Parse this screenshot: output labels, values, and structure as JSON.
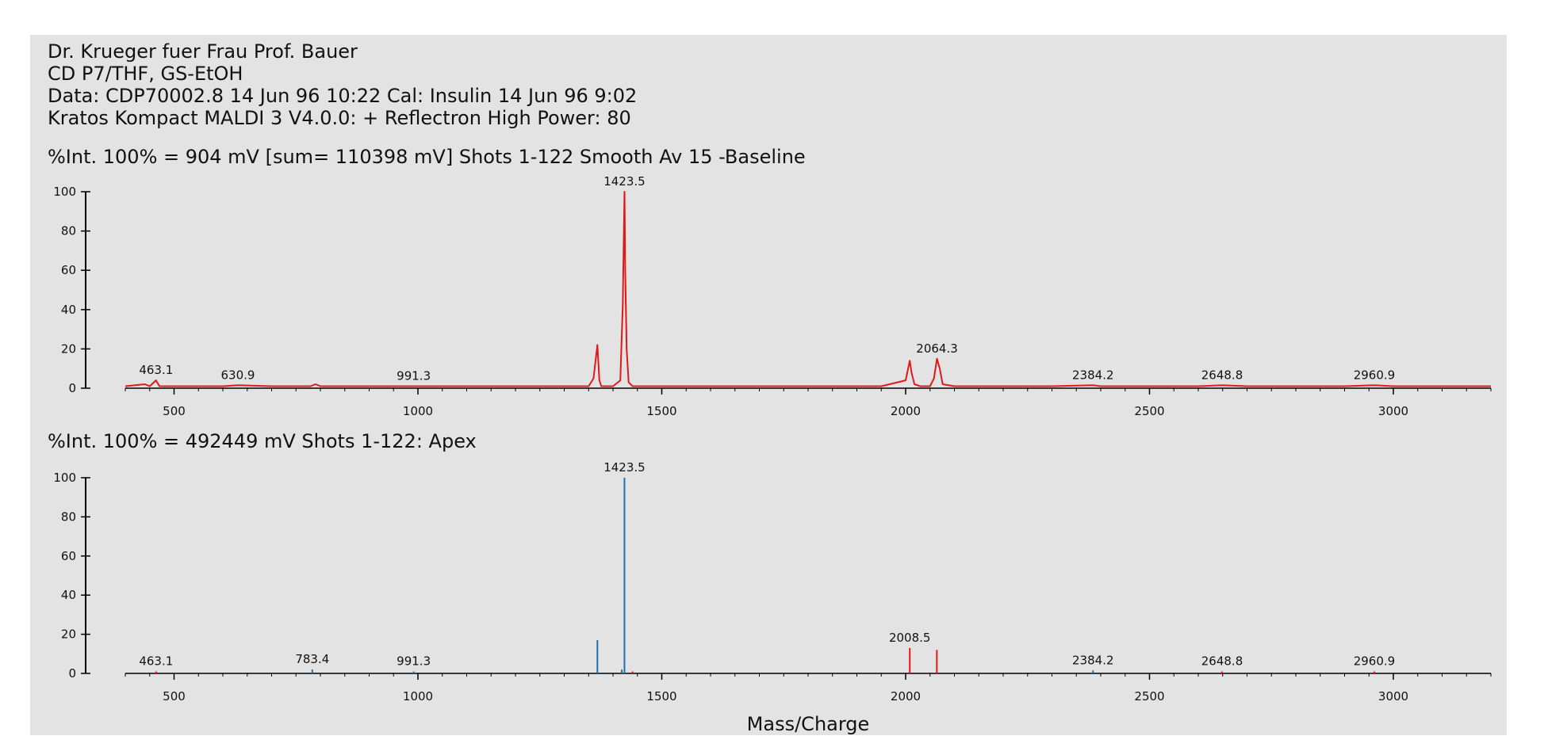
{
  "header": {
    "line1": "Dr. Krueger fuer Frau Prof. Bauer",
    "line2": "CD P7/THF, GS-EtOH",
    "line3": "Data: CDP70002.8 14 Jun 96 10:22 Cal: Insulin 14 Jun 96 9:02",
    "line4": "Kratos Kompact MALDI 3 V4.0.0: + Reflectron High Power: 80"
  },
  "colors": {
    "panel": "#e3e3e3",
    "spectrum_top": "#e01818",
    "stick_main": "#1f6fb0",
    "stick_alt": "#e01818",
    "axis": "#000000"
  },
  "chart_data": [
    {
      "type": "line",
      "stat_line": "%Int. 100% = 904 mV [sum= 110398 mV] Shots 1-122 Smooth Av 15 -Baseline",
      "xlim": [
        400,
        3200
      ],
      "ylim": [
        0,
        100
      ],
      "x_ticks": [
        500,
        1000,
        1500,
        2000,
        2500,
        3000
      ],
      "y_ticks": [
        0,
        20,
        40,
        60,
        80,
        100
      ],
      "series": [
        {
          "x": [
            400,
            440,
            450,
            463,
            470,
            500,
            600,
            630.9,
            700,
            780,
            790,
            800,
            900,
            991.3,
            1000,
            1100,
            1200,
            1300,
            1350,
            1360,
            1368,
            1372,
            1376,
            1385,
            1400,
            1415,
            1420,
            1422,
            1423.5,
            1425,
            1428,
            1432,
            1440,
            1460,
            1500,
            1600,
            1700,
            1800,
            1900,
            1950,
            2000,
            2005,
            2008.5,
            2012,
            2018,
            2030,
            2050,
            2058,
            2064.3,
            2070,
            2076,
            2100,
            2200,
            2300,
            2384.2,
            2400,
            2500,
            2600,
            2648.8,
            2700,
            2800,
            2900,
            2960.9,
            3000,
            3100,
            3200
          ],
          "y": [
            1,
            2,
            1,
            4,
            1,
            1,
            1,
            1.5,
            1,
            1,
            2,
            1,
            1,
            1,
            1,
            1,
            1,
            1,
            1,
            5,
            22,
            4,
            1,
            1,
            1,
            4,
            42,
            75,
            100,
            60,
            20,
            3,
            1,
            1,
            1,
            1,
            1,
            1,
            1,
            1,
            4,
            10,
            14,
            8,
            2,
            1,
            1,
            5,
            15,
            10,
            2,
            1,
            1,
            1,
            1.5,
            1,
            1,
            1,
            1.5,
            1,
            1,
            1,
            1.5,
            1,
            1,
            1
          ]
        }
      ],
      "peak_labels": [
        {
          "x": 463.1,
          "y": 4,
          "text": "463.1"
        },
        {
          "x": 630.9,
          "y": 1.5,
          "text": "630.9"
        },
        {
          "x": 991.3,
          "y": 1,
          "text": "991.3"
        },
        {
          "x": 1423.5,
          "y": 100,
          "text": "1423.5"
        },
        {
          "x": 2064.3,
          "y": 15,
          "text": "2064.3"
        },
        {
          "x": 2384.2,
          "y": 1.5,
          "text": "2384.2"
        },
        {
          "x": 2648.8,
          "y": 1.5,
          "text": "2648.8"
        },
        {
          "x": 2960.9,
          "y": 1.5,
          "text": "2960.9"
        }
      ],
      "xlabel": "",
      "ylabel": ""
    },
    {
      "type": "bar",
      "stat_line": "%Int. 100% = 492449 mV Shots 1-122: Apex",
      "xlim": [
        400,
        3200
      ],
      "ylim": [
        0,
        100
      ],
      "x_ticks": [
        500,
        1000,
        1500,
        2000,
        2500,
        3000
      ],
      "y_ticks": [
        0,
        20,
        40,
        60,
        80,
        100
      ],
      "sticks": [
        {
          "x": 463.1,
          "y": 1,
          "color": "#e01818"
        },
        {
          "x": 783.4,
          "y": 2,
          "color": "#1f6fb0"
        },
        {
          "x": 991.3,
          "y": 1,
          "color": "#1f6fb0"
        },
        {
          "x": 1368,
          "y": 17,
          "color": "#1f6fb0"
        },
        {
          "x": 1418,
          "y": 2,
          "color": "#1f6fb0"
        },
        {
          "x": 1423.5,
          "y": 100,
          "color": "#1f6fb0"
        },
        {
          "x": 1440,
          "y": 1,
          "color": "#e01818"
        },
        {
          "x": 2008.5,
          "y": 13,
          "color": "#e01818"
        },
        {
          "x": 2064,
          "y": 12,
          "color": "#e01818"
        },
        {
          "x": 2384.2,
          "y": 1.5,
          "color": "#1f6fb0"
        },
        {
          "x": 2648.8,
          "y": 1,
          "color": "#e01818"
        },
        {
          "x": 2960.9,
          "y": 1,
          "color": "#e01818"
        }
      ],
      "peak_labels": [
        {
          "x": 463.1,
          "y": 1,
          "text": "463.1"
        },
        {
          "x": 783.4,
          "y": 2,
          "text": "783.4"
        },
        {
          "x": 991.3,
          "y": 1,
          "text": "991.3"
        },
        {
          "x": 1423.5,
          "y": 100,
          "text": "1423.5"
        },
        {
          "x": 2008.5,
          "y": 13,
          "text": "2008.5"
        },
        {
          "x": 2384.2,
          "y": 1.5,
          "text": "2384.2"
        },
        {
          "x": 2648.8,
          "y": 1,
          "text": "2648.8"
        },
        {
          "x": 2960.9,
          "y": 1,
          "text": "2960.9"
        }
      ],
      "xlabel": "Mass/Charge",
      "ylabel": ""
    }
  ]
}
